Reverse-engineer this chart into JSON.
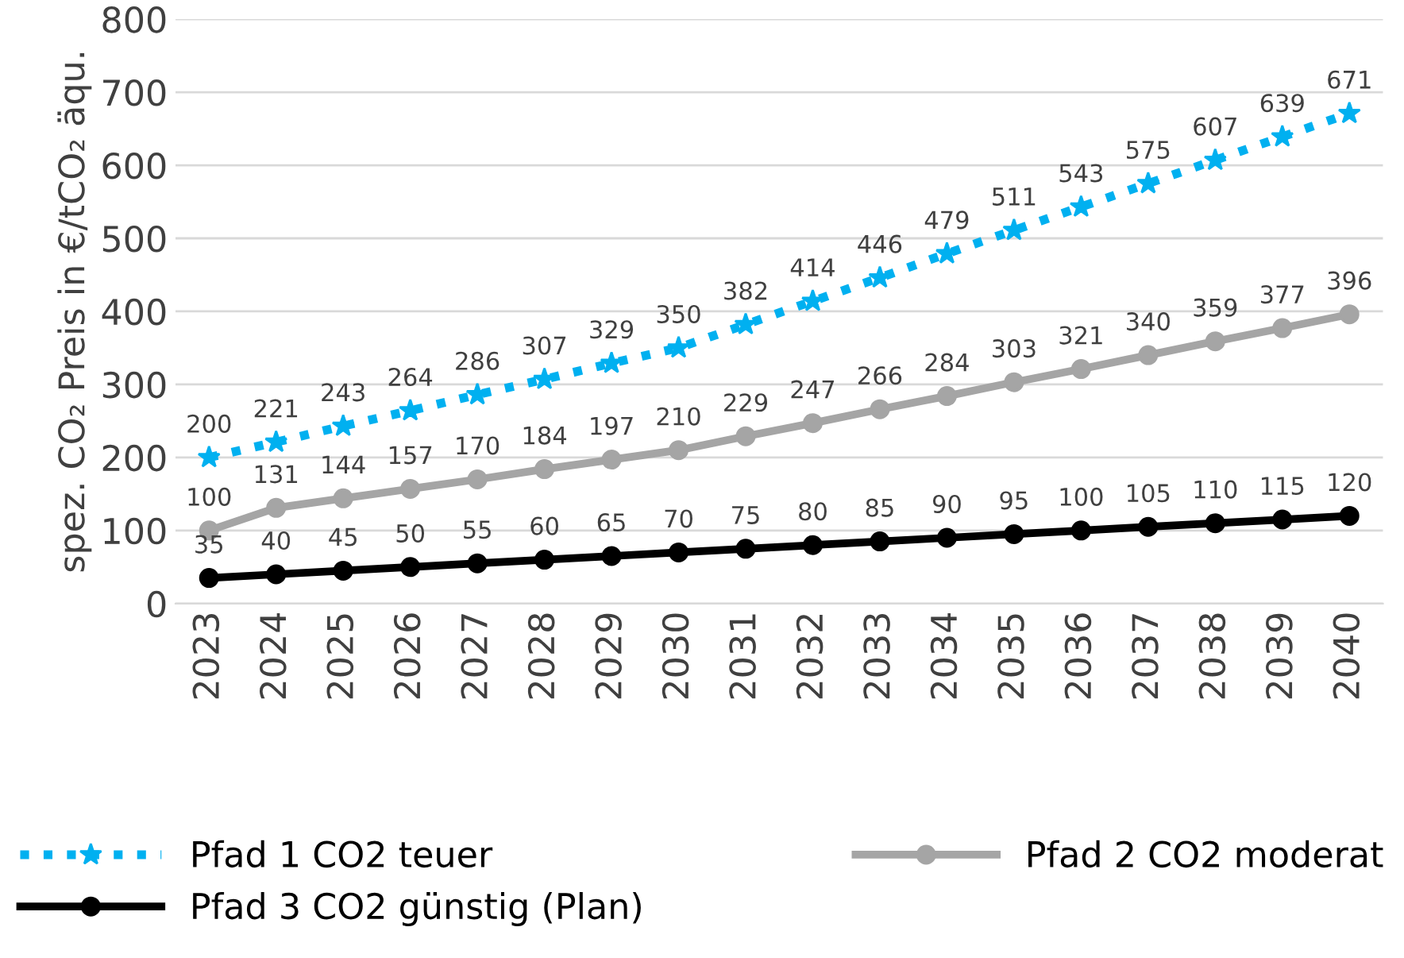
{
  "chart_data": {
    "type": "line",
    "ylabel": "spez. CO₂ Preis in €/tCO₂ äqu.",
    "categories": [
      "2023",
      "2024",
      "2025",
      "2026",
      "2027",
      "2028",
      "2029",
      "2030",
      "2031",
      "2032",
      "2033",
      "2034",
      "2035",
      "2036",
      "2037",
      "2038",
      "2039",
      "2040"
    ],
    "series": [
      {
        "name": "Pfad 1 CO2 teuer",
        "color": "#00b0f0",
        "line_style": "dotted",
        "marker": "star",
        "values": [
          200,
          221,
          243,
          264,
          286,
          307,
          329,
          350,
          382,
          414,
          446,
          479,
          511,
          543,
          575,
          607,
          639,
          671
        ]
      },
      {
        "name": "Pfad 2 CO2 moderat",
        "color": "#a5a5a5",
        "line_style": "solid",
        "marker": "circle",
        "values": [
          100,
          131,
          144,
          157,
          170,
          184,
          197,
          210,
          229,
          247,
          266,
          284,
          303,
          321,
          340,
          359,
          377,
          396
        ]
      },
      {
        "name": "Pfad 3 CO2 günstig (Plan)",
        "color": "#000000",
        "line_style": "solid",
        "marker": "circle",
        "values": [
          35,
          40,
          45,
          50,
          55,
          60,
          65,
          70,
          75,
          80,
          85,
          90,
          95,
          100,
          105,
          110,
          115,
          120
        ]
      }
    ],
    "ylim": [
      0,
      800
    ],
    "yticks": [
      0,
      100,
      200,
      300,
      400,
      500,
      600,
      700,
      800
    ],
    "grid": "y",
    "legend": "bottom",
    "data_labels": true
  }
}
